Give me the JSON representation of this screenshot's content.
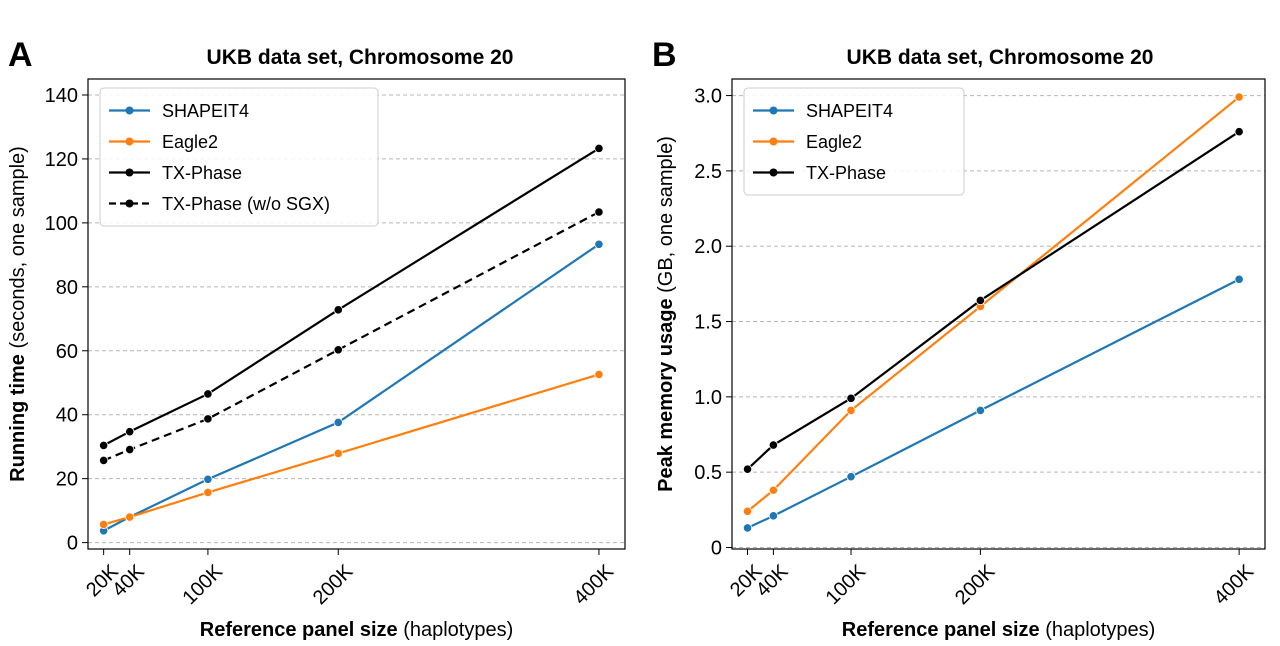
{
  "figure": {
    "panels": [
      "A",
      "B"
    ]
  },
  "chart_data": [
    {
      "type": "line",
      "panel_label": "A",
      "title": "UKB data set, Chromosome 20",
      "xlabel_bold": "Reference panel size",
      "xlabel_normal": "(haplotypes)",
      "ylabel_bold": "Running time",
      "ylabel_normal": "(seconds, one sample)",
      "x": [
        20,
        40,
        100,
        200,
        400
      ],
      "x_tick_labels": [
        "20K",
        "40K",
        "100K",
        "200K",
        "400K"
      ],
      "xlim": [
        8,
        420
      ],
      "ylim": [
        -2,
        145
      ],
      "y_ticks": [
        0,
        20,
        40,
        60,
        80,
        100,
        120,
        140
      ],
      "grid": "horizontal dashed",
      "legend_position": "top-left",
      "series": [
        {
          "name": "SHAPEIT4",
          "color": "#1f77b4",
          "style": "solid",
          "values": [
            3.7,
            8.0,
            19.8,
            37.6,
            93.3
          ]
        },
        {
          "name": "Eagle2",
          "color": "#ff7f0e",
          "style": "solid",
          "values": [
            5.7,
            8.0,
            15.7,
            27.9,
            52.6
          ]
        },
        {
          "name": "TX-Phase",
          "color": "#000000",
          "style": "solid",
          "values": [
            30.4,
            34.7,
            46.5,
            72.8,
            123.3
          ]
        },
        {
          "name": "TX-Phase (w/o SGX)",
          "color": "#000000",
          "style": "dashed",
          "values": [
            25.7,
            29.1,
            38.7,
            60.3,
            103.4
          ]
        }
      ]
    },
    {
      "type": "line",
      "panel_label": "B",
      "title": "UKB data set, Chromosome 20",
      "xlabel_bold": "Reference panel size",
      "xlabel_normal": "(haplotypes)",
      "ylabel_bold": "Peak memory usage",
      "ylabel_normal": "(GB, one sample)",
      "x": [
        20,
        40,
        100,
        200,
        400
      ],
      "x_tick_labels": [
        "20K",
        "40K",
        "100K",
        "200K",
        "400K"
      ],
      "xlim": [
        8,
        420
      ],
      "ylim": [
        -0.01,
        3.11
      ],
      "y_ticks": [
        0,
        0.5,
        1.0,
        1.5,
        2.0,
        2.5,
        3.0
      ],
      "y_tick_labels": [
        "0",
        "0.5",
        "1.0",
        "1.5",
        "2.0",
        "2.5",
        "3.0"
      ],
      "grid": "horizontal dashed",
      "legend_position": "top-left",
      "series": [
        {
          "name": "SHAPEIT4",
          "color": "#1f77b4",
          "style": "solid",
          "values": [
            0.13,
            0.21,
            0.47,
            0.91,
            1.78
          ]
        },
        {
          "name": "Eagle2",
          "color": "#ff7f0e",
          "style": "solid",
          "values": [
            0.24,
            0.38,
            0.91,
            1.6,
            2.99
          ]
        },
        {
          "name": "TX-Phase",
          "color": "#000000",
          "style": "solid",
          "values": [
            0.52,
            0.68,
            0.99,
            1.64,
            2.76
          ]
        }
      ]
    }
  ]
}
